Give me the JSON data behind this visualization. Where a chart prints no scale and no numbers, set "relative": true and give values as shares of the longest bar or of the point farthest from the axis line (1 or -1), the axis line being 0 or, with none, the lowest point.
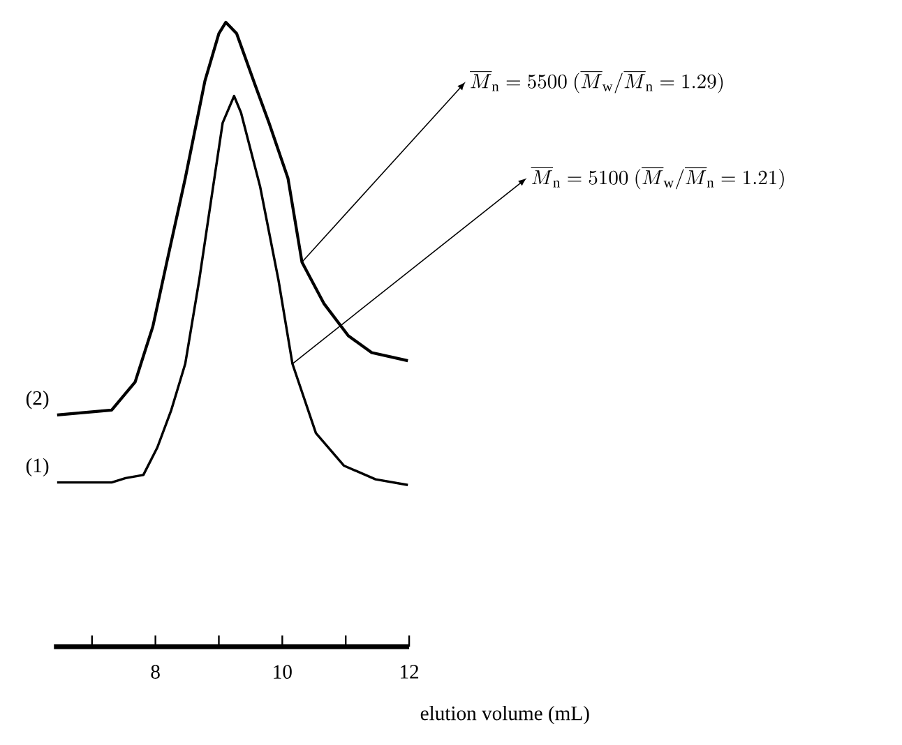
{
  "chart_data": {
    "type": "line",
    "relative": true,
    "xlabel": "elution volume (mL)",
    "xlim": [
      6.4,
      12
    ],
    "xticks": [
      {
        "value": 7,
        "label": null
      },
      8,
      {
        "value": 9,
        "label": null
      },
      10,
      {
        "value": 11,
        "label": null
      },
      12
    ],
    "series": [
      {
        "name": "(1)",
        "color": "#000000",
        "x": [
          6.45,
          7.31,
          7.53,
          7.81,
          8.03,
          8.25,
          8.47,
          8.69,
          8.91,
          9.06,
          9.24,
          9.35,
          9.65,
          9.94,
          10.16,
          10.53,
          10.97,
          11.47,
          11.98
        ],
        "values": [
          0.263,
          0.263,
          0.27,
          0.275,
          0.319,
          0.379,
          0.453,
          0.587,
          0.737,
          0.839,
          0.882,
          0.855,
          0.737,
          0.587,
          0.453,
          0.342,
          0.29,
          0.268,
          0.259
        ]
      },
      {
        "name": "(2)",
        "color": "#000000",
        "x": [
          6.45,
          7.31,
          7.68,
          7.96,
          8.18,
          8.47,
          8.78,
          9.0,
          9.11,
          9.28,
          9.57,
          9.79,
          10.09,
          10.31,
          10.66,
          11.04,
          11.41,
          11.98
        ],
        "values": [
          0.371,
          0.379,
          0.424,
          0.513,
          0.616,
          0.75,
          0.906,
          0.982,
          1,
          0.982,
          0.9,
          0.839,
          0.75,
          0.616,
          0.549,
          0.498,
          0.471,
          0.458
        ]
      }
    ],
    "annotations": [
      {
        "text": "\\overline{M}_{\\mathrm{n}} = 5500\\ (\\overline{M}_{\\mathrm{w}}/\\overline{M}_{\\mathrm{n}} = 1.29)",
        "x": 10.31,
        "y": 0.616
      },
      {
        "text": "\\overline{M}_{\\mathrm{n}} = 5100\\ (\\overline{M}_{\\mathrm{w}}/\\overline{M}_{\\mathrm{n}} = 1.21)",
        "x": 10.16,
        "y": 0.453
      }
    ]
  }
}
